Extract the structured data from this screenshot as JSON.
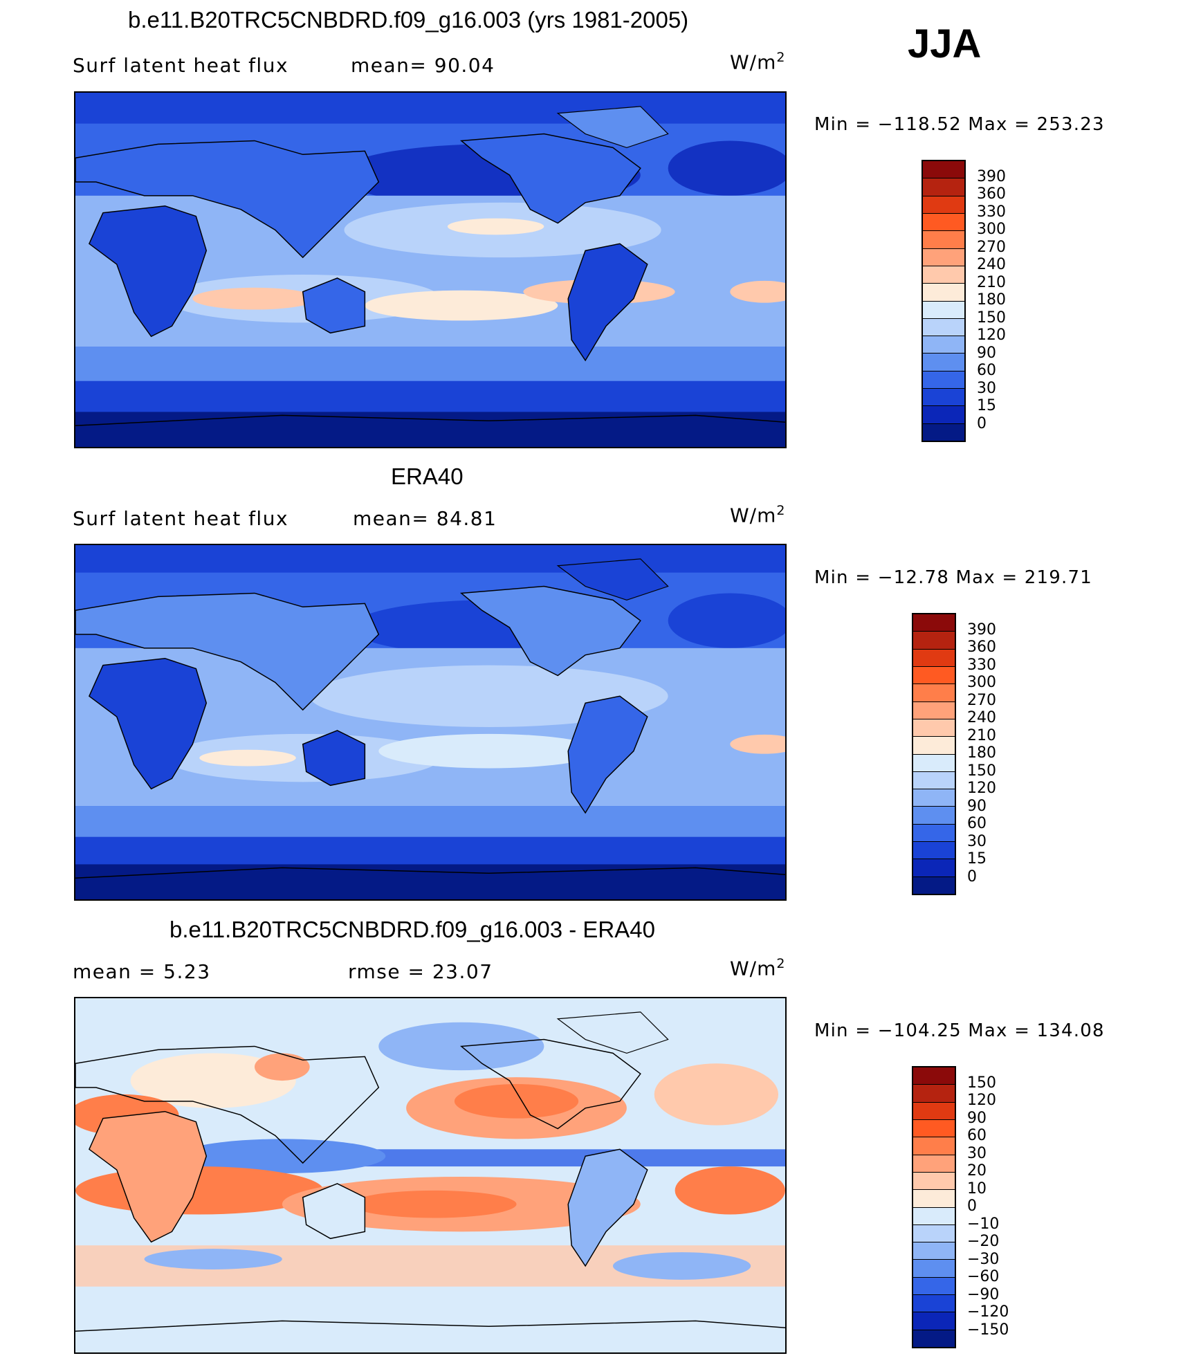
{
  "season": "JJA",
  "panels": [
    {
      "title": "b.e11.B20TRC5CNBDRD.f09_g16.003 (yrs 1981-2005)",
      "left_text": "Surf  latent  heat  flux",
      "middle_text": "mean=   90.04",
      "units": "W/m",
      "units_sup": "2",
      "minmax": "Min  =  −118.52  Max  =  253.23",
      "colorbar": {
        "labels": [
          "390",
          "360",
          "330",
          "300",
          "270",
          "240",
          "210",
          "180",
          "150",
          "120",
          "90",
          "60",
          "30",
          "15",
          "0"
        ],
        "colors": [
          "#8b0a0a",
          "#b52310",
          "#e03a12",
          "#ff5a22",
          "#ff7e4a",
          "#ffa27a",
          "#ffc9ac",
          "#fdebd9",
          "#d9ebfb",
          "#b9d3fa",
          "#8fb5f6",
          "#5e8ff0",
          "#3566e8",
          "#1a43d6",
          "#0b26b8",
          "#041a86"
        ]
      }
    },
    {
      "title": "ERA40",
      "left_text": "Surf  latent  heat  flux",
      "middle_text": "mean=   84.81",
      "units": "W/m",
      "units_sup": "2",
      "minmax": "Min  =  −12.78  Max  =  219.71",
      "colorbar": {
        "labels": [
          "390",
          "360",
          "330",
          "300",
          "270",
          "240",
          "210",
          "180",
          "150",
          "120",
          "90",
          "60",
          "30",
          "15",
          "0"
        ],
        "colors": [
          "#8b0a0a",
          "#b52310",
          "#e03a12",
          "#ff5a22",
          "#ff7e4a",
          "#ffa27a",
          "#ffc9ac",
          "#fdebd9",
          "#d9ebfb",
          "#b9d3fa",
          "#8fb5f6",
          "#5e8ff0",
          "#3566e8",
          "#1a43d6",
          "#0b26b8",
          "#041a86"
        ]
      }
    },
    {
      "title": "b.e11.B20TRC5CNBDRD.f09_g16.003 - ERA40",
      "left_text": "mean  =     5.23",
      "middle_text": "rmse  =    23.07",
      "units": "W/m",
      "units_sup": "2",
      "minmax": "Min  =  −104.25  Max  =  134.08",
      "colorbar": {
        "labels": [
          "150",
          "120",
          "90",
          "60",
          "30",
          "20",
          "10",
          "0",
          "−10",
          "−20",
          "−30",
          "−60",
          "−90",
          "−120",
          "−150"
        ],
        "colors": [
          "#8b0a0a",
          "#b52310",
          "#e03a12",
          "#ff5a22",
          "#ff7e4a",
          "#ffa27a",
          "#ffc9ac",
          "#fdebd9",
          "#d9ebfb",
          "#b9d3fa",
          "#8fb5f6",
          "#5e8ff0",
          "#3566e8",
          "#1a43d6",
          "#0b26b8",
          "#041a86"
        ]
      }
    }
  ]
}
